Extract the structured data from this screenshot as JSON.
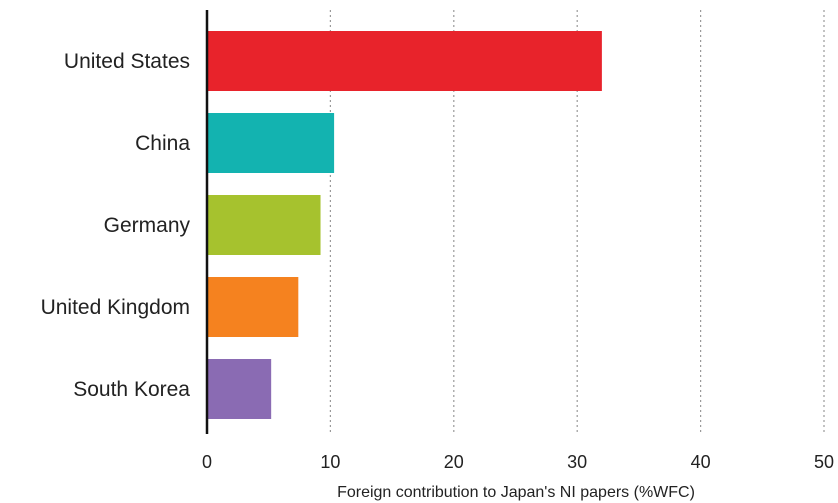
{
  "chart_data": {
    "type": "bar",
    "orientation": "horizontal",
    "categories": [
      "United States",
      "China",
      "Germany",
      "United Kingdom",
      "South Korea"
    ],
    "values": [
      32,
      10.3,
      9.2,
      7.4,
      5.2
    ],
    "colors": [
      "#e8232b",
      "#13b3b0",
      "#a6c22e",
      "#f5821f",
      "#8a6bb3"
    ],
    "xlabel": "Foreign contribution to Japan's NI papers (%WFC)",
    "xlim": [
      0,
      50
    ],
    "xticks": [
      0,
      10,
      20,
      30,
      40,
      50
    ],
    "grid": "vertical dotted"
  }
}
